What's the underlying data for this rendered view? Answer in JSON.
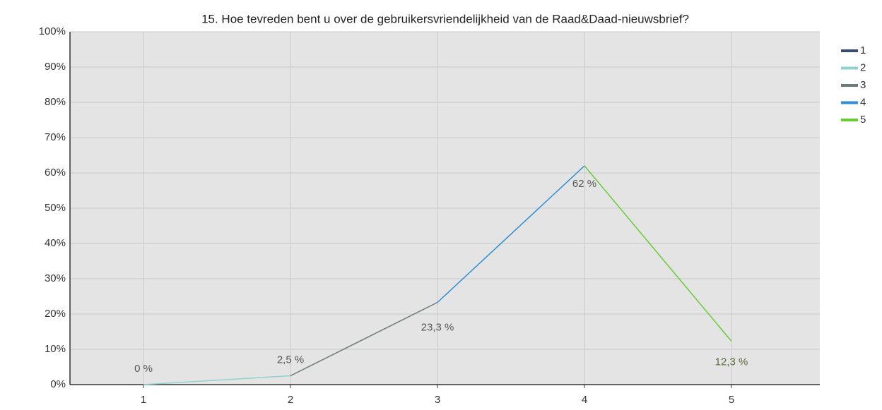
{
  "chart_data": {
    "type": "line",
    "title": "15. Hoe tevreden bent u over de gebruikersvriendelijkheid van de Raad&Daad-nieuwsbrief?",
    "categories": [
      "1",
      "2",
      "3",
      "4",
      "5"
    ],
    "values": [
      0,
      2.5,
      23.3,
      62,
      12.3
    ],
    "value_labels": [
      "0 %",
      "2,5 %",
      "23,3 %",
      "62 %",
      "12,3 %"
    ],
    "series": [
      {
        "name": "1",
        "color": "#3a4a6b"
      },
      {
        "name": "2",
        "color": "#8fd3d0"
      },
      {
        "name": "3",
        "color": "#6d7a7a"
      },
      {
        "name": "4",
        "color": "#2e8fd6"
      },
      {
        "name": "5",
        "color": "#66cc33"
      }
    ],
    "ylim": [
      0,
      100
    ],
    "yticks": [
      {
        "value": 0,
        "label": "0%"
      },
      {
        "value": 10,
        "label": "10%"
      },
      {
        "value": 20,
        "label": "20%"
      },
      {
        "value": 30,
        "label": "30%"
      },
      {
        "value": 40,
        "label": "40%"
      },
      {
        "value": 50,
        "label": "50%"
      },
      {
        "value": 60,
        "label": "60%"
      },
      {
        "value": 70,
        "label": "70%"
      },
      {
        "value": 80,
        "label": "80%"
      },
      {
        "value": 90,
        "label": "90%"
      },
      {
        "value": 100,
        "label": "100%"
      }
    ],
    "grid": true,
    "legend": "right"
  }
}
